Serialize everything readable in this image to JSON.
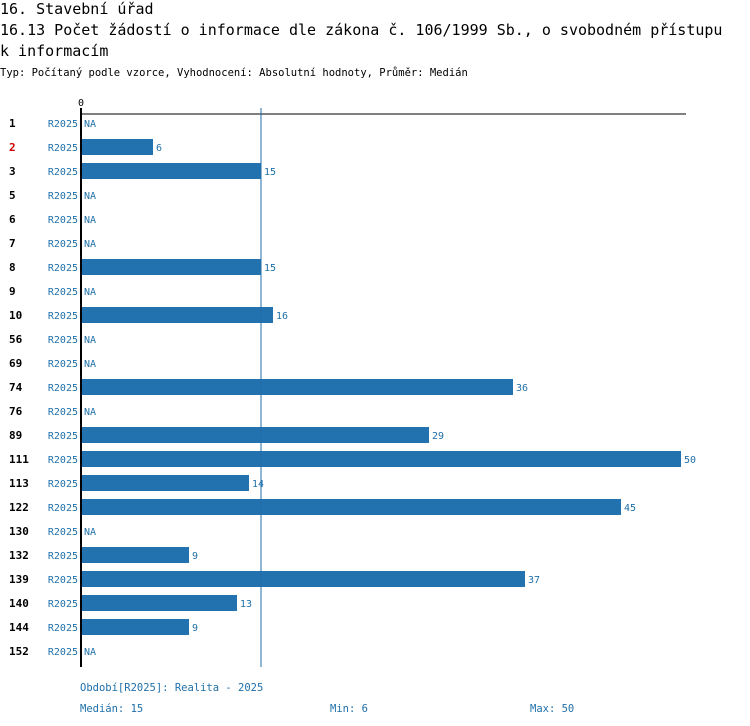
{
  "header": {
    "title1": "16. Stavební úřad",
    "title2": "16.13 Počet žádostí o informace dle zákona č. 106/1999 Sb., o svobodném přístupu",
    "title3": "k informacím",
    "subtitle": "Typ: Počítaný podle vzorce, Vyhodnocení: Absolutní hodnoty, Průměr: Medián"
  },
  "footer": {
    "period": "Období[R2025]: Realita - 2025",
    "median": "Medián: 15",
    "min": "Min: 6",
    "max": "Max: 50"
  },
  "colors": {
    "bar": "#2372b0",
    "label": "#1f6fa9",
    "highlight": "#d00000",
    "axis": "#000000"
  },
  "chart_data": {
    "type": "bar",
    "orientation": "horizontal",
    "title": "16.13 Počet žádostí o informace dle zákona č. 106/1999 Sb., o svobodném přístupu k informacím",
    "xlim": [
      0,
      50
    ],
    "x_tick_label": "0",
    "median": 15,
    "series_label": "R2025",
    "highlighted_category": "2",
    "categories": [
      "1",
      "2",
      "3",
      "5",
      "6",
      "7",
      "8",
      "9",
      "10",
      "56",
      "69",
      "74",
      "76",
      "89",
      "111",
      "113",
      "122",
      "130",
      "132",
      "139",
      "140",
      "144",
      "152"
    ],
    "values": [
      null,
      6,
      15,
      null,
      null,
      null,
      15,
      null,
      16,
      null,
      null,
      36,
      null,
      29,
      50,
      14,
      45,
      null,
      9,
      37,
      13,
      9,
      null
    ],
    "na_label": "NA"
  }
}
